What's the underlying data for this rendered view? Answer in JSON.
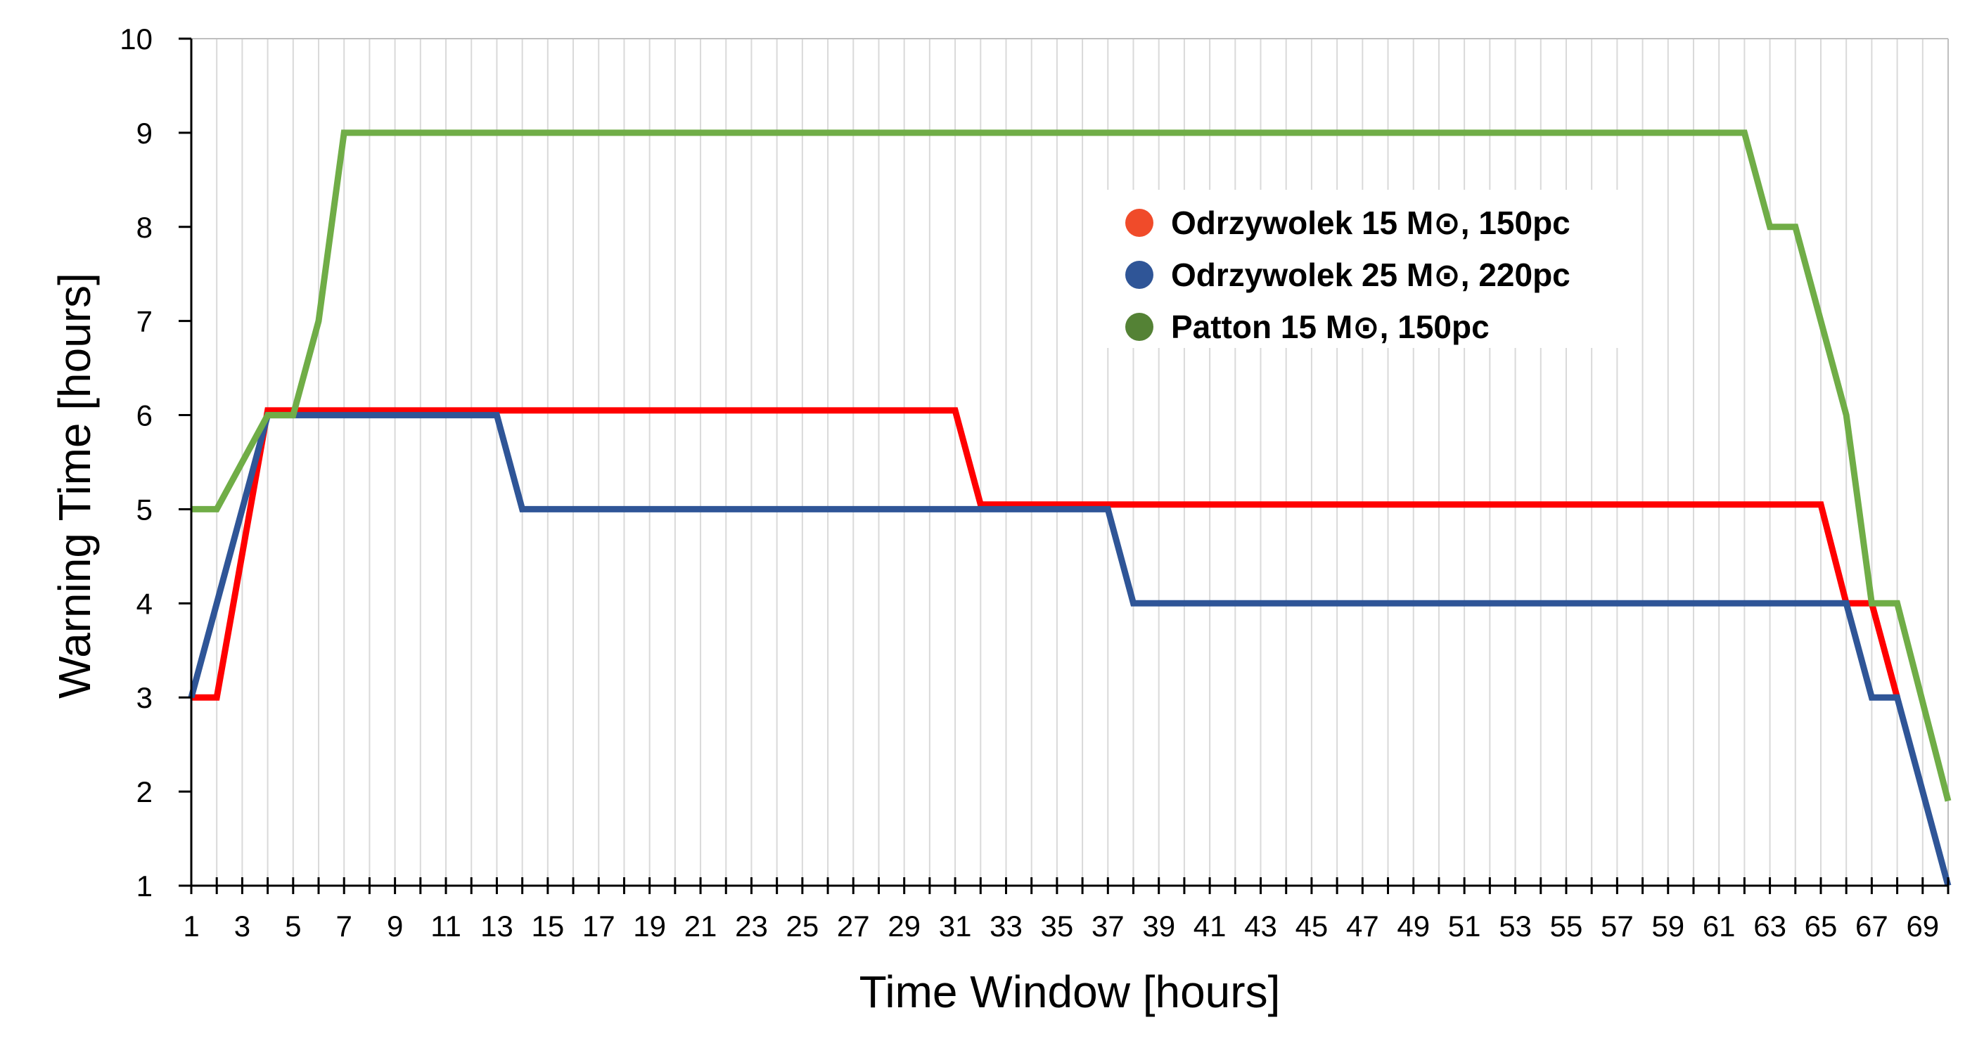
{
  "chart_data": {
    "type": "line",
    "title": "",
    "xlabel": "Time Window [hours]",
    "ylabel": "Warning Time [hours]",
    "xlim": [
      1,
      70
    ],
    "ylim": [
      1,
      10
    ],
    "yticks": [
      "1",
      "2",
      "3",
      "4",
      "5",
      "6",
      "7",
      "8",
      "9",
      "10"
    ],
    "xtick_labels": [
      "1",
      "3",
      "5",
      "7",
      "9",
      "11",
      "13",
      "15",
      "17",
      "19",
      "21",
      "23",
      "25",
      "27",
      "29",
      "31",
      "33",
      "35",
      "37",
      "39",
      "41",
      "43",
      "45",
      "47",
      "49",
      "51",
      "53",
      "55",
      "57",
      "59",
      "61",
      "63",
      "65",
      "67",
      "69"
    ],
    "grid": "vertical",
    "legend_position": "upper-right",
    "series": [
      {
        "name": "Odrzywolek 15 M⊙, 150pc",
        "color": "#ff0000",
        "points": [
          [
            1,
            3
          ],
          [
            2,
            3
          ],
          [
            4,
            6.05
          ],
          [
            31,
            6.05
          ],
          [
            32,
            5.05
          ],
          [
            65,
            5.05
          ],
          [
            66,
            4
          ],
          [
            67,
            4
          ],
          [
            68,
            3
          ]
        ]
      },
      {
        "name": "Odrzywolek 25 M⊙, 220pc",
        "color": "#2f5597",
        "points": [
          [
            1,
            3
          ],
          [
            4,
            6
          ],
          [
            13,
            6
          ],
          [
            14,
            5
          ],
          [
            37,
            5
          ],
          [
            38,
            4
          ],
          [
            66,
            4
          ],
          [
            67,
            3
          ],
          [
            68,
            3
          ],
          [
            70,
            1
          ]
        ]
      },
      {
        "name": "Patton 15 M⊙, 150pc",
        "color": "#70ad47",
        "points": [
          [
            1,
            5
          ],
          [
            2,
            5
          ],
          [
            4,
            6
          ],
          [
            5,
            6
          ],
          [
            6,
            7
          ],
          [
            7,
            9
          ],
          [
            62,
            9
          ],
          [
            63,
            8
          ],
          [
            64,
            8
          ],
          [
            66,
            6
          ],
          [
            67,
            4
          ],
          [
            68,
            4
          ],
          [
            70,
            1.9
          ]
        ]
      }
    ]
  }
}
